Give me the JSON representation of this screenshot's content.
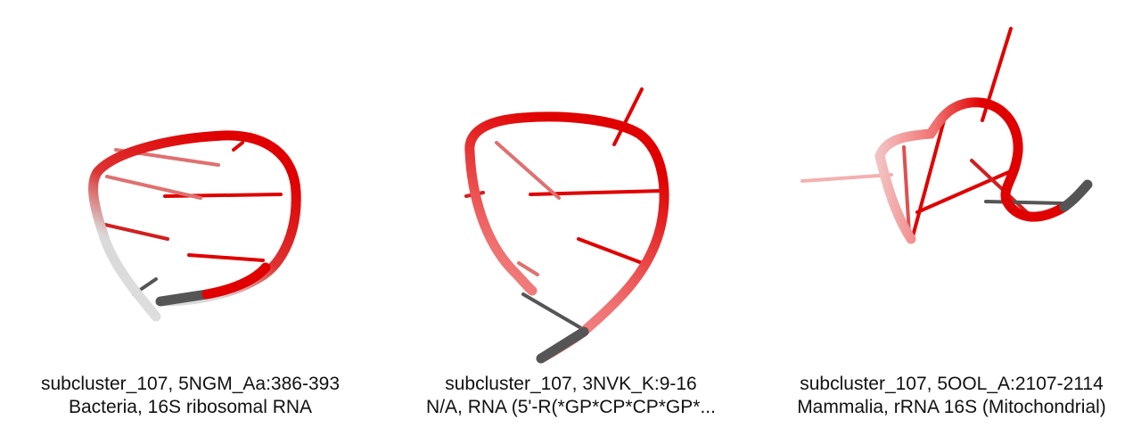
{
  "structures": [
    {
      "title": "subcluster_107, 5NGM_Aa:386-393",
      "subtitle": "Bacteria, 16S ribosomal RNA",
      "colors": {
        "main": "#e00000",
        "faded": "#d9d9d9",
        "end": "#555555"
      }
    },
    {
      "title": "subcluster_107, 3NVK_K:9-16",
      "subtitle": "N/A, RNA (5'-R(*GP*CP*CP*GP*...",
      "colors": {
        "main": "#e00000",
        "faded": "#f2a0a0",
        "end": "#555555"
      }
    },
    {
      "title": "subcluster_107, 5OOL_A:2107-2114",
      "subtitle": "Mammalia, rRNA 16S (Mitochondrial)",
      "colors": {
        "main": "#e00000",
        "faded": "#f0b0b0",
        "end": "#555555"
      }
    }
  ]
}
